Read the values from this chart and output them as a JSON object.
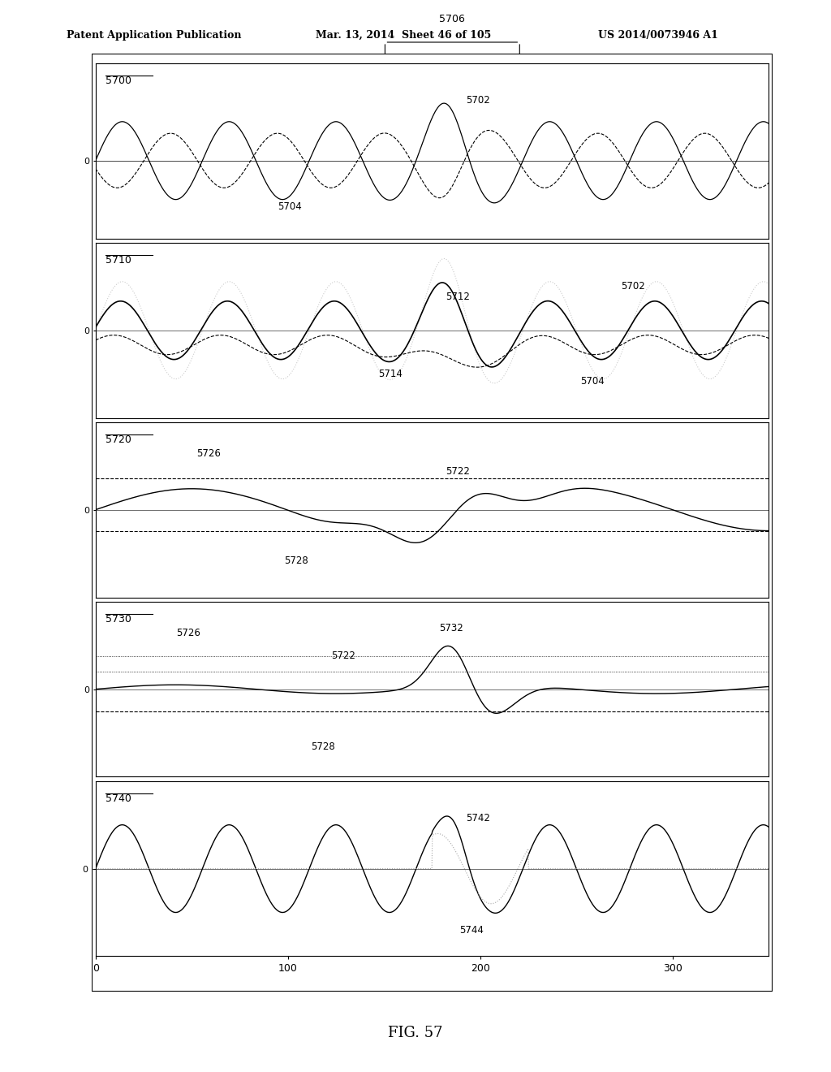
{
  "header_left": "Patent Application Publication",
  "header_mid": "Mar. 13, 2014  Sheet 46 of 105",
  "header_right": "US 2014/0073946 A1",
  "fig_label": "FIG. 57",
  "panel_labels": [
    "5700",
    "5710",
    "5720",
    "5730",
    "5740"
  ],
  "background_color": "#ffffff",
  "line_color_black": "#000000",
  "line_color_gray": "#aaaaaa",
  "xlim": [
    0,
    350
  ],
  "xticks": [
    0,
    100,
    200,
    300
  ],
  "xtick_labels": [
    "0",
    "100",
    "200",
    "300"
  ]
}
